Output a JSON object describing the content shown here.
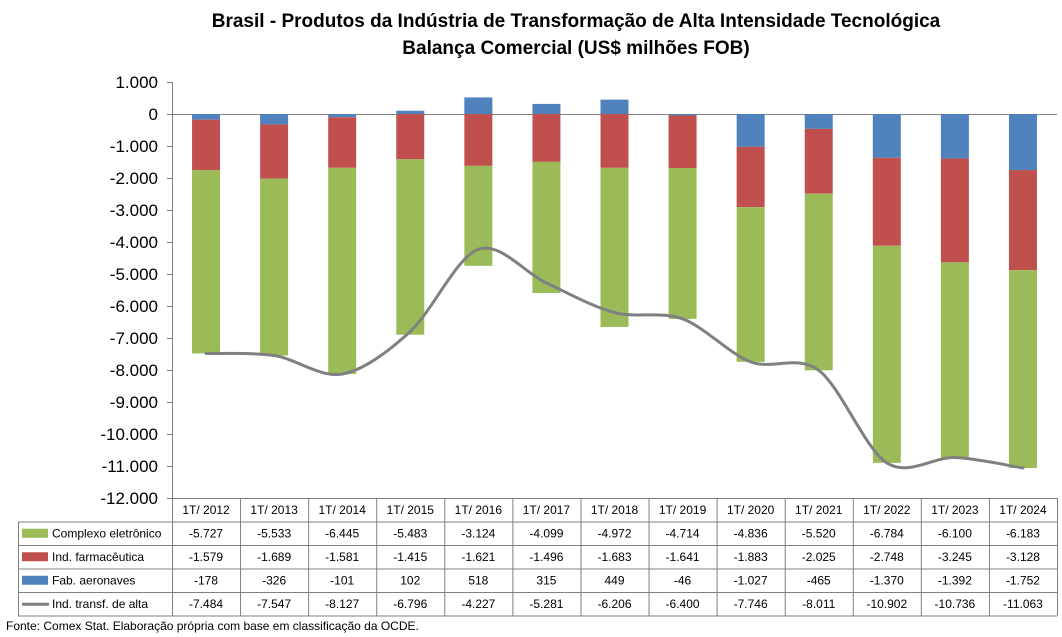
{
  "title": "Brasil - Produtos da Indústria de Transformação de Alta Intensidade Tecnológica",
  "subtitle": "Balança Comercial (US$ milhões FOB)",
  "source": "Fonte: Comex Stat. Elaboração própria com base em classificação da OCDE.",
  "colors": {
    "complexo": "#9BBB59",
    "farma": "#C0504D",
    "aero": "#4F81BD",
    "line": "#808080",
    "grid": "#808080"
  },
  "chart_data": {
    "type": "bar",
    "stacked": true,
    "categories": [
      "1T/ 2012",
      "1T/ 2013",
      "1T/ 2014",
      "1T/ 2015",
      "1T/ 2016",
      "1T/ 2017",
      "1T/ 2018",
      "1T/ 2019",
      "1T/ 2020",
      "1T/ 2021",
      "1T/ 2022",
      "1T/ 2023",
      "1T/ 2024"
    ],
    "ylim": [
      -12000,
      1000
    ],
    "yticks": [
      1000,
      0,
      -1000,
      -2000,
      -3000,
      -4000,
      -5000,
      -6000,
      -7000,
      -8000,
      -9000,
      -10000,
      -11000,
      -12000
    ],
    "ytick_labels": [
      "1.000",
      "0",
      "-1.000",
      "-2.000",
      "-3.000",
      "-4.000",
      "-5.000",
      "-6.000",
      "-7.000",
      "-8.000",
      "-9.000",
      "-10.000",
      "-11.000",
      "-12.000"
    ],
    "grid": false,
    "legend": "data table below chart",
    "series": [
      {
        "name": "Complexo eletrônico",
        "type": "bar",
        "color": "#9BBB59",
        "values": [
          -5727,
          -5533,
          -6445,
          -5483,
          -3124,
          -4099,
          -4972,
          -4714,
          -4836,
          -5520,
          -6784,
          -6100,
          -6183
        ],
        "labels": [
          "-5.727",
          "-5.533",
          "-6.445",
          "-5.483",
          "-3.124",
          "-4.099",
          "-4.972",
          "-4.714",
          "-4.836",
          "-5.520",
          "-6.784",
          "-6.100",
          "-6.183"
        ]
      },
      {
        "name": "Ind. farmacêutica",
        "type": "bar",
        "color": "#C0504D",
        "values": [
          -1579,
          -1689,
          -1581,
          -1415,
          -1621,
          -1496,
          -1683,
          -1641,
          -1883,
          -2025,
          -2748,
          -3245,
          -3128
        ],
        "labels": [
          "-1.579",
          "-1.689",
          "-1.581",
          "-1.415",
          "-1.621",
          "-1.496",
          "-1.683",
          "-1.641",
          "-1.883",
          "-2.025",
          "-2.748",
          "-3.245",
          "-3.128"
        ]
      },
      {
        "name": "Fab. aeronaves",
        "type": "bar",
        "color": "#4F81BD",
        "values": [
          -178,
          -326,
          -101,
          102,
          518,
          315,
          449,
          -46,
          -1027,
          -465,
          -1370,
          -1392,
          -1752
        ],
        "labels": [
          "-178",
          "-326",
          "-101",
          "102",
          "518",
          "315",
          "449",
          "-46",
          "-1.027",
          "-465",
          "-1.370",
          "-1.392",
          "-1.752"
        ]
      },
      {
        "name": "Ind. transf. de alta",
        "type": "line",
        "color": "#808080",
        "values": [
          -7484,
          -7547,
          -8127,
          -6796,
          -4227,
          -5281,
          -6206,
          -6400,
          -7746,
          -8011,
          -10902,
          -10736,
          -11063
        ],
        "labels": [
          "-7.484",
          "-7.547",
          "-8.127",
          "-6.796",
          "-4.227",
          "-5.281",
          "-6.206",
          "-6.400",
          "-7.746",
          "-8.011",
          "-10.902",
          "-10.736",
          "-11.063"
        ]
      }
    ]
  }
}
